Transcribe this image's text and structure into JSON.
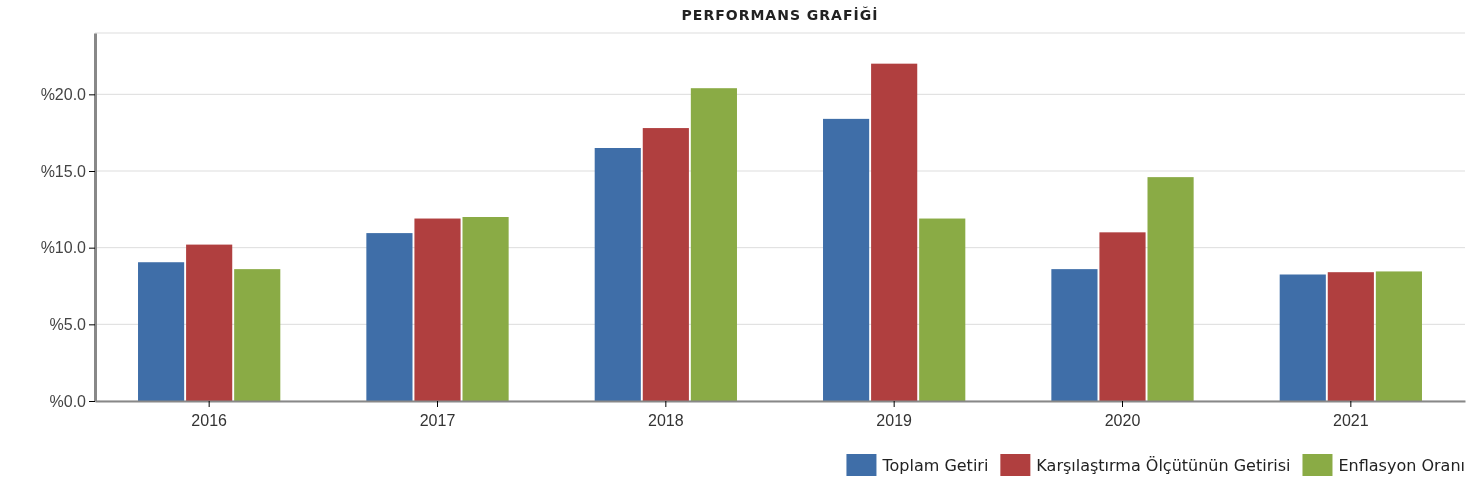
{
  "chart_data": {
    "type": "bar",
    "title": "PERFORMANS GRAFİĞİ",
    "categories": [
      "2016",
      "2017",
      "2018",
      "2019",
      "2020",
      "2021"
    ],
    "series": [
      {
        "name": "Toplam Getiri",
        "color": "#3f6ea8",
        "values": [
          9.05,
          10.95,
          16.5,
          18.4,
          8.6,
          8.25
        ]
      },
      {
        "name": "Karşılaştırma Ölçütünün Getirisi",
        "color": "#b03f3f",
        "values": [
          10.2,
          11.9,
          17.8,
          22.0,
          11.0,
          8.4
        ]
      },
      {
        "name": "Enflasyon Oranı",
        "color": "#8aab45",
        "values": [
          8.6,
          12.0,
          20.4,
          11.9,
          14.6,
          8.45
        ]
      }
    ],
    "ylim": [
      0,
      24
    ],
    "yticks": [
      {
        "value": 0,
        "label": "%0.0"
      },
      {
        "value": 5,
        "label": "%5.0"
      },
      {
        "value": 10,
        "label": "%10.0"
      },
      {
        "value": 15,
        "label": "%15.0"
      },
      {
        "value": 20,
        "label": "%20.0"
      }
    ],
    "grid": "y",
    "legend": "bottom right"
  }
}
